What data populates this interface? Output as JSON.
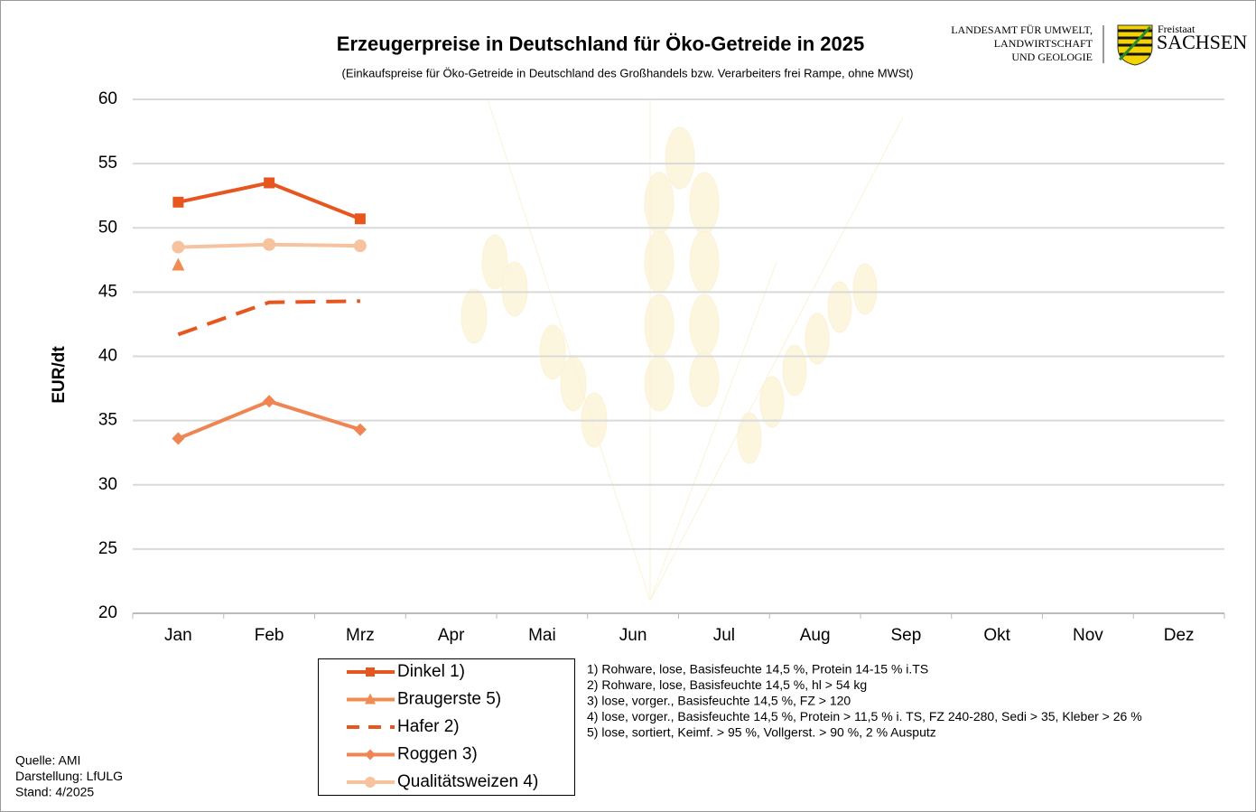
{
  "chart_data": {
    "type": "line",
    "title": "Erzeugerpreise in Deutschland für Öko-Getreide in 2025",
    "subtitle": "(Einkaufspreise für Öko-Getreide in Deutschland des Großhandels bzw. Verarbeiters frei Rampe, ohne MWSt)",
    "y_label": "EUR/dt",
    "categories": [
      "Jan",
      "Feb",
      "Mrz",
      "Apr",
      "Mai",
      "Jun",
      "Jul",
      "Aug",
      "Sep",
      "Okt",
      "Nov",
      "Dez"
    ],
    "series": [
      {
        "name": "Dinkel 1)",
        "color": "#e8561f",
        "marker": "square",
        "dash": false,
        "values": [
          52.0,
          53.5,
          50.7,
          null,
          null,
          null,
          null,
          null,
          null,
          null,
          null,
          null
        ]
      },
      {
        "name": "Braugerste 5)",
        "color": "#f08c52",
        "marker": "triangle",
        "dash": false,
        "values": [
          47.1,
          null,
          null,
          null,
          null,
          null,
          null,
          null,
          null,
          null,
          null,
          null
        ]
      },
      {
        "name": "Hafer 2)",
        "color": "#e8561f",
        "marker": "none",
        "dash": true,
        "values": [
          41.7,
          44.2,
          44.3,
          null,
          null,
          null,
          null,
          null,
          null,
          null,
          null,
          null
        ]
      },
      {
        "name": "Roggen 3)",
        "color": "#ef8552",
        "marker": "diamond",
        "dash": false,
        "values": [
          33.6,
          36.5,
          34.3,
          null,
          null,
          null,
          null,
          null,
          null,
          null,
          null,
          null
        ]
      },
      {
        "name": "Qualitätsweizen 4)",
        "color": "#f7c29e",
        "marker": "circle",
        "dash": false,
        "values": [
          48.5,
          48.7,
          48.6,
          null,
          null,
          null,
          null,
          null,
          null,
          null,
          null,
          null
        ]
      }
    ],
    "ylim": [
      20,
      60
    ],
    "yticks": [
      20,
      25,
      30,
      35,
      40,
      45,
      50,
      55,
      60
    ],
    "grid": true,
    "footnotes": [
      "1) Rohware, lose, Basisfeuchte 14,5 %, Protein 14-15 % i.TS",
      "2) Rohware, lose, Basisfeuchte 14,5 %, hl > 54 kg",
      "3) lose, vorger., Basisfeuchte 14,5 %, FZ > 120",
      "4) lose, vorger., Basisfeuchte 14,5 %, Protein > 11,5 % i. TS, FZ 240-280, Sedi > 35, Kleber > 26 %",
      "5) lose, sortiert, Keimf. > 95 %, Vollgerst. > 90 %, 2 % Ausputz"
    ],
    "source": [
      "Quelle: AMI",
      "Darstellung: LfULG",
      "Stand: 4/2025"
    ],
    "logo": {
      "agency": [
        "LANDESAMT FÜR UMWELT,",
        "LANDWIRTSCHAFT",
        "UND GEOLOGIE"
      ],
      "state_small": "Freistaat",
      "state": "SACHSEN"
    }
  }
}
